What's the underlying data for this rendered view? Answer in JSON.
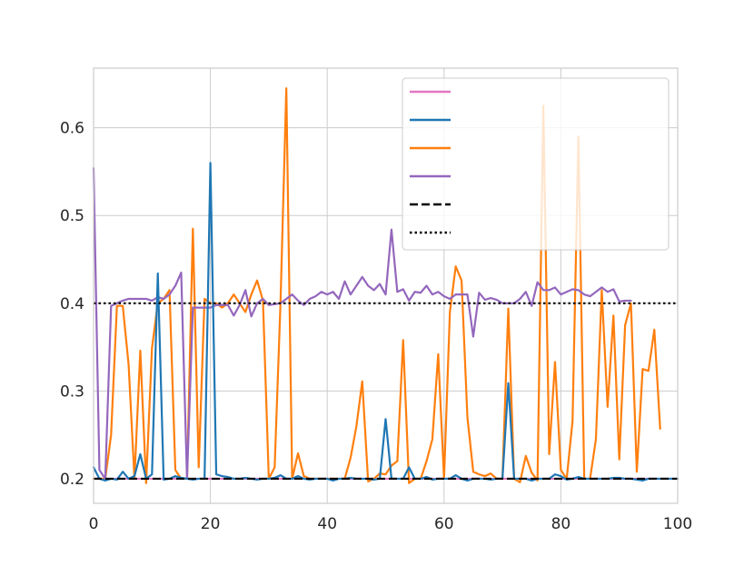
{
  "chart_data": {
    "type": "line",
    "xlim": [
      0,
      100
    ],
    "ylim": [
      0.172,
      0.668
    ],
    "grid": true,
    "legend_placement": "top-right",
    "x_ticks": [
      0,
      20,
      40,
      60,
      80,
      100
    ],
    "x_tick_labels": [
      "0",
      "20",
      "40",
      "60",
      "80",
      "100"
    ],
    "y_ticks": [
      0.2,
      0.3,
      0.4,
      0.5,
      0.6
    ],
    "y_tick_labels": [
      "0.2",
      "0.3",
      "0.4",
      "0.5",
      "0.6"
    ],
    "colors": {
      "pink": "#e377c2",
      "blue": "#1f77b4",
      "orange": "#ff7f0e",
      "purple": "#9467bd",
      "black": "#000000"
    },
    "series": [
      {
        "color": "#e377c2",
        "style": "solid",
        "x": [
          0,
          1,
          2,
          3,
          4,
          5,
          6,
          7,
          8,
          9,
          10,
          11,
          12,
          13,
          14,
          15,
          16,
          17,
          18,
          19,
          20,
          21,
          22,
          23,
          24,
          25,
          26,
          27,
          28,
          29,
          30,
          31,
          32,
          33,
          34,
          35,
          36,
          37,
          38,
          39,
          40,
          41,
          42,
          43,
          44,
          45,
          46,
          47,
          48,
          49,
          50,
          51,
          52,
          53,
          54,
          55,
          56,
          57,
          58,
          59,
          60,
          61,
          62,
          63,
          64,
          65,
          66,
          67,
          68,
          69,
          70,
          71,
          72,
          73,
          74,
          75,
          76,
          77,
          78,
          79,
          80,
          81,
          82,
          83,
          84,
          85,
          86,
          87,
          88,
          89,
          90,
          91,
          92,
          93,
          94,
          95,
          96,
          97,
          98,
          99,
          100
        ],
        "y": [
          0.2,
          0.2,
          0.2,
          0.2,
          0.2,
          0.2,
          0.2,
          0.2,
          0.2,
          0.2,
          0.2,
          0.2,
          0.2,
          0.2,
          0.2,
          0.2,
          0.2,
          0.2,
          0.2,
          0.2,
          0.2,
          0.2,
          0.2,
          0.2,
          0.2,
          0.2,
          0.2,
          0.2,
          0.2,
          0.2,
          0.2,
          0.2,
          0.2,
          0.2,
          0.2,
          0.2,
          0.2,
          0.2,
          0.2,
          0.2,
          0.2,
          0.2,
          0.2,
          0.2,
          0.2,
          0.2,
          0.2,
          0.2,
          0.2,
          0.2,
          0.2,
          0.2,
          0.2,
          0.2,
          0.2,
          0.2,
          0.2,
          0.2,
          0.2,
          0.2,
          0.2,
          0.2,
          0.2,
          0.2,
          0.2,
          0.2,
          0.2,
          0.2,
          0.2,
          0.2,
          0.2,
          0.2,
          0.2,
          0.2,
          0.2,
          0.2,
          0.2,
          0.2,
          0.2,
          0.2,
          0.2,
          0.2,
          0.2,
          0.2,
          0.2,
          0.2,
          0.2,
          0.2,
          0.2,
          0.2,
          0.2,
          0.2,
          0.2,
          0.2,
          0.2,
          0.2,
          0.2,
          0.2,
          0.2,
          0.2,
          0.2
        ]
      },
      {
        "color": "#1f77b4",
        "style": "solid",
        "x": [
          0,
          1,
          2,
          3,
          4,
          5,
          6,
          7,
          8,
          9,
          10,
          11,
          12,
          13,
          14,
          15,
          16,
          17,
          18,
          19,
          20,
          21,
          22,
          23,
          24,
          25,
          26,
          27,
          28,
          29,
          30,
          31,
          32,
          33,
          34,
          35,
          36,
          37,
          38,
          39,
          40,
          41,
          42,
          43,
          44,
          45,
          46,
          47,
          48,
          49,
          50,
          51,
          52,
          53,
          54,
          55,
          56,
          57,
          58,
          59,
          60,
          61,
          62,
          63,
          64,
          65,
          66,
          67,
          68,
          69,
          70,
          71,
          72,
          73,
          74,
          75,
          76,
          77,
          78,
          79,
          80,
          81,
          82,
          83,
          84,
          85,
          86,
          87,
          88,
          89,
          90,
          91,
          92,
          93,
          94,
          95,
          96,
          97,
          98,
          99,
          100
        ],
        "y": [
          0.213,
          0.2,
          0.198,
          0.2,
          0.199,
          0.208,
          0.2,
          0.203,
          0.228,
          0.2,
          0.205,
          0.434,
          0.199,
          0.2,
          0.203,
          0.201,
          0.2,
          0.199,
          0.2,
          0.2,
          0.56,
          0.205,
          0.203,
          0.202,
          0.2,
          0.2,
          0.201,
          0.2,
          0.199,
          0.2,
          0.2,
          0.201,
          0.204,
          0.2,
          0.2,
          0.203,
          0.2,
          0.199,
          0.2,
          0.2,
          0.2,
          0.198,
          0.2,
          0.2,
          0.201,
          0.2,
          0.2,
          0.2,
          0.199,
          0.2,
          0.268,
          0.2,
          0.2,
          0.2,
          0.213,
          0.2,
          0.2,
          0.202,
          0.199,
          0.2,
          0.2,
          0.2,
          0.204,
          0.2,
          0.198,
          0.2,
          0.2,
          0.2,
          0.199,
          0.2,
          0.2,
          0.309,
          0.2,
          0.2,
          0.2,
          0.198,
          0.2,
          0.2,
          0.2,
          0.205,
          0.203,
          0.199,
          0.2,
          0.202,
          0.2,
          0.2,
          0.2,
          0.2,
          0.2,
          0.201,
          0.201,
          0.2,
          0.2,
          0.199,
          0.198,
          0.2,
          0.2,
          0.2,
          0.2,
          0.2,
          0.2
        ]
      },
      {
        "color": "#ff7f0e",
        "style": "solid",
        "x": [
          0,
          1,
          2,
          3,
          4,
          5,
          6,
          7,
          8,
          9,
          10,
          11,
          12,
          13,
          14,
          15,
          16,
          17,
          18,
          19,
          20,
          21,
          22,
          23,
          24,
          25,
          26,
          27,
          28,
          29,
          30,
          31,
          32,
          33,
          34,
          35,
          36,
          37,
          38,
          39,
          40,
          41,
          42,
          43,
          44,
          45,
          46,
          47,
          48,
          49,
          50,
          51,
          52,
          53,
          54,
          55,
          56,
          57,
          58,
          59,
          60,
          61,
          62,
          63,
          64,
          65,
          66,
          67,
          68,
          69,
          70,
          71,
          72,
          73,
          74,
          75,
          76,
          77,
          78,
          79,
          80,
          81,
          82,
          83,
          84,
          85,
          86,
          87,
          88,
          89,
          90,
          91,
          92,
          93,
          94,
          95,
          96,
          97
        ],
        "y": [
          0.2,
          0.2,
          0.2,
          0.25,
          0.397,
          0.397,
          0.33,
          0.2,
          0.346,
          0.195,
          0.349,
          0.4,
          0.405,
          0.415,
          0.21,
          0.2,
          0.2,
          0.485,
          0.213,
          0.405,
          0.4,
          0.4,
          0.395,
          0.4,
          0.41,
          0.4,
          0.39,
          0.41,
          0.426,
          0.403,
          0.2,
          0.213,
          0.4,
          0.645,
          0.2,
          0.229,
          0.203,
          0.2,
          0.2,
          0.2,
          0.2,
          0.2,
          0.2,
          0.2,
          0.224,
          0.26,
          0.311,
          0.197,
          0.2,
          0.206,
          0.205,
          0.215,
          0.22,
          0.358,
          0.195,
          0.2,
          0.2,
          0.22,
          0.245,
          0.342,
          0.2,
          0.39,
          0.442,
          0.426,
          0.27,
          0.208,
          0.205,
          0.203,
          0.206,
          0.2,
          0.2,
          0.394,
          0.2,
          0.196,
          0.226,
          0.207,
          0.198,
          0.625,
          0.228,
          0.333,
          0.21,
          0.2,
          0.266,
          0.59,
          0.2,
          0.2,
          0.245,
          0.415,
          0.282,
          0.386,
          0.222,
          0.375,
          0.4,
          0.208,
          0.325,
          0.323,
          0.37,
          0.257
        ]
      },
      {
        "color": "#9467bd",
        "style": "solid",
        "x": [
          0,
          1,
          2,
          3,
          4,
          5,
          6,
          7,
          8,
          9,
          10,
          11,
          12,
          13,
          14,
          15,
          16,
          17,
          18,
          19,
          20,
          21,
          22,
          23,
          24,
          25,
          26,
          27,
          28,
          29,
          30,
          31,
          32,
          33,
          34,
          35,
          36,
          37,
          38,
          39,
          40,
          41,
          42,
          43,
          44,
          45,
          46,
          47,
          48,
          49,
          50,
          51,
          52,
          53,
          54,
          55,
          56,
          57,
          58,
          59,
          60,
          61,
          62,
          63,
          64,
          65,
          66,
          67,
          68,
          69,
          70,
          71,
          72,
          73,
          74,
          75,
          76,
          77,
          78,
          79,
          80,
          81,
          82,
          83,
          84,
          85,
          86,
          87,
          88,
          89,
          90,
          91,
          92
        ],
        "y": [
          0.554,
          0.21,
          0.2,
          0.397,
          0.4,
          0.403,
          0.405,
          0.405,
          0.405,
          0.405,
          0.403,
          0.407,
          0.405,
          0.41,
          0.42,
          0.435,
          0.2,
          0.395,
          0.395,
          0.395,
          0.395,
          0.398,
          0.398,
          0.398,
          0.386,
          0.398,
          0.415,
          0.385,
          0.4,
          0.405,
          0.398,
          0.399,
          0.4,
          0.405,
          0.41,
          0.403,
          0.398,
          0.405,
          0.408,
          0.413,
          0.41,
          0.413,
          0.405,
          0.425,
          0.41,
          0.42,
          0.43,
          0.42,
          0.415,
          0.422,
          0.41,
          0.484,
          0.413,
          0.416,
          0.403,
          0.413,
          0.412,
          0.42,
          0.41,
          0.413,
          0.408,
          0.405,
          0.41,
          0.41,
          0.41,
          0.362,
          0.412,
          0.404,
          0.406,
          0.404,
          0.4,
          0.4,
          0.4,
          0.405,
          0.413,
          0.397,
          0.424,
          0.415,
          0.415,
          0.418,
          0.41,
          0.413,
          0.416,
          0.415,
          0.41,
          0.408,
          0.413,
          0.418,
          0.413,
          0.416,
          0.402,
          0.403,
          0.403
        ]
      },
      {
        "color": "#000000",
        "style": "dashed",
        "x": [
          0,
          100
        ],
        "y": [
          0.2,
          0.2
        ]
      },
      {
        "color": "#000000",
        "style": "dotted",
        "x": [
          0,
          100
        ],
        "y": [
          0.4,
          0.4
        ]
      }
    ]
  }
}
